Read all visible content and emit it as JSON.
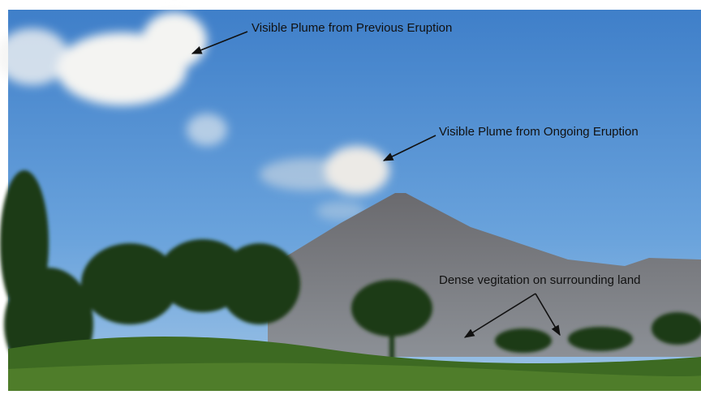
{
  "annotations": [
    {
      "label": "Visible Plume from Previous Eruption"
    },
    {
      "label": "Visible Plume from Ongoing Eruption"
    },
    {
      "label": "Dense vegitation on surrounding land"
    }
  ]
}
